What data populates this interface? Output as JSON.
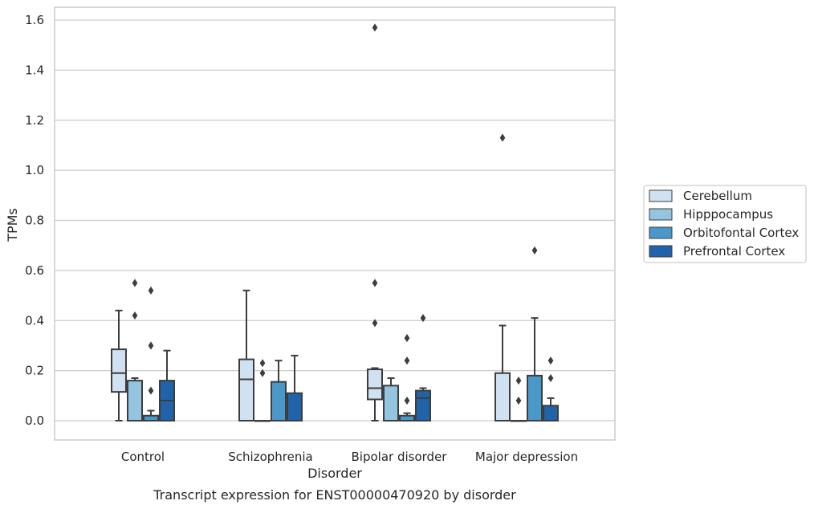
{
  "chart_data": {
    "type": "box",
    "title": "",
    "caption": "Transcript expression for ENST00000470920 by disorder",
    "xlabel": "Disorder",
    "ylabel": "TPMs",
    "ylim": [
      -0.075,
      1.65
    ],
    "yticks": [
      0.0,
      0.2,
      0.4,
      0.6,
      0.8,
      1.0,
      1.2,
      1.4,
      1.6
    ],
    "ytick_labels": [
      "0.0",
      "0.2",
      "0.4",
      "0.6",
      "0.8",
      "1.0",
      "1.2",
      "1.4",
      "1.6"
    ],
    "grid": "horizontal",
    "legend_position": "center-right, outside plot",
    "categories": [
      "Control",
      "Schizophrenia",
      "Bipolar disorder",
      "Major depression"
    ],
    "series": [
      {
        "name": "Cerebellum",
        "color": "#d0e1f2",
        "boxes": [
          {
            "whislo": 0.0,
            "q1": 0.115,
            "med": 0.19,
            "q3": 0.285,
            "whishi": 0.44,
            "fliers": []
          },
          {
            "whislo": 0.0,
            "q1": 0.0,
            "med": 0.165,
            "q3": 0.245,
            "whishi": 0.52,
            "fliers": []
          },
          {
            "whislo": 0.0,
            "q1": 0.085,
            "med": 0.13,
            "q3": 0.205,
            "whishi": 0.21,
            "fliers": [
              0.55,
              0.39,
              1.57
            ]
          },
          {
            "whislo": 0.0,
            "q1": 0.0,
            "med": 0.0,
            "q3": 0.19,
            "whishi": 0.38,
            "fliers": [
              1.13
            ]
          }
        ]
      },
      {
        "name": "Hipppocampus",
        "color": "#94c4df",
        "boxes": [
          {
            "whislo": 0.0,
            "q1": 0.0,
            "med": 0.0,
            "q3": 0.16,
            "whishi": 0.17,
            "fliers": [
              0.55,
              0.42
            ]
          },
          {
            "whislo": 0.0,
            "q1": 0.0,
            "med": 0.0,
            "q3": 0.0,
            "whishi": 0.0,
            "fliers": [
              0.23,
              0.19
            ]
          },
          {
            "whislo": 0.0,
            "q1": 0.0,
            "med": 0.0,
            "q3": 0.14,
            "whishi": 0.17,
            "fliers": []
          },
          {
            "whislo": 0.0,
            "q1": 0.0,
            "med": 0.0,
            "q3": 0.0,
            "whishi": 0.0,
            "fliers": [
              0.16,
              0.08
            ]
          }
        ]
      },
      {
        "name": "Orbitofontal Cortex",
        "color": "#4a98c9",
        "boxes": [
          {
            "whislo": 0.0,
            "q1": 0.0,
            "med": 0.0,
            "q3": 0.02,
            "whishi": 0.04,
            "fliers": [
              0.52,
              0.3,
              0.12
            ]
          },
          {
            "whislo": 0.0,
            "q1": 0.0,
            "med": 0.0,
            "q3": 0.155,
            "whishi": 0.24,
            "fliers": []
          },
          {
            "whislo": 0.0,
            "q1": 0.0,
            "med": 0.0,
            "q3": 0.02,
            "whishi": 0.03,
            "fliers": [
              0.33,
              0.24,
              0.08
            ]
          },
          {
            "whislo": 0.0,
            "q1": 0.0,
            "med": 0.0,
            "q3": 0.18,
            "whishi": 0.41,
            "fliers": [
              0.68
            ]
          }
        ]
      },
      {
        "name": "Prefrontal Cortex",
        "color": "#2063aa",
        "boxes": [
          {
            "whislo": 0.0,
            "q1": 0.0,
            "med": 0.08,
            "q3": 0.16,
            "whishi": 0.28,
            "fliers": []
          },
          {
            "whislo": 0.0,
            "q1": 0.0,
            "med": 0.0,
            "q3": 0.11,
            "whishi": 0.26,
            "fliers": []
          },
          {
            "whislo": 0.0,
            "q1": 0.0,
            "med": 0.09,
            "q3": 0.12,
            "whishi": 0.13,
            "fliers": [
              0.41
            ]
          },
          {
            "whislo": 0.0,
            "q1": 0.0,
            "med": 0.0,
            "q3": 0.06,
            "whishi": 0.09,
            "fliers": [
              0.24,
              0.17
            ]
          }
        ]
      }
    ],
    "colors": {
      "grid": "#cccccc",
      "frame": "#cccccc",
      "line": "#3d3d3d",
      "legend_border": "#cccccc"
    }
  }
}
